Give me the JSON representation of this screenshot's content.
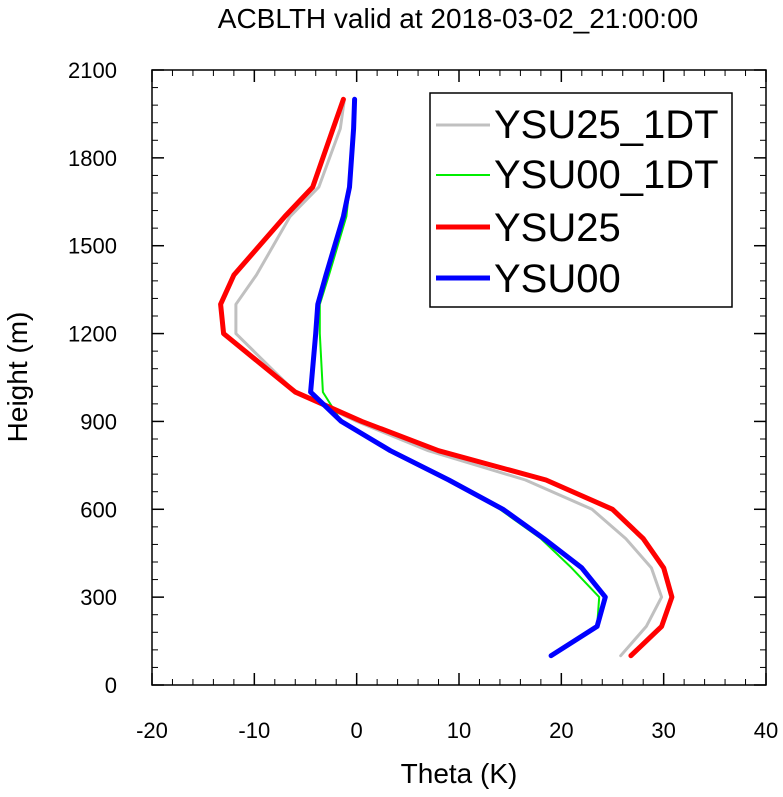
{
  "chart_data": {
    "type": "line",
    "title": "ACBLTH valid at 2018-03-02_21:00:00",
    "xlabel": "Theta (K)",
    "ylabel": "Height (m)",
    "xlim": [
      -20,
      40
    ],
    "ylim": [
      0,
      2100
    ],
    "xticks": [
      -20,
      -10,
      0,
      10,
      20,
      30,
      40
    ],
    "yticks": [
      0,
      300,
      600,
      900,
      1200,
      1500,
      1800,
      2100
    ],
    "grid": false,
    "legend_position": "top-right",
    "series": [
      {
        "name": "YSU25_1DT",
        "color": "#c0c0c0",
        "width": 3,
        "x": [
          25.8,
          28.3,
          29.8,
          28.8,
          26.3,
          23.0,
          16.5,
          7.0,
          0.0,
          -6.0,
          -11.8,
          -11.8,
          -9.8,
          -6.5,
          -3.7,
          -1.6,
          -1.2
        ],
        "y": [
          100,
          200,
          300,
          400,
          500,
          600,
          700,
          800,
          900,
          1000,
          1200,
          1300,
          1400,
          1600,
          1700,
          1900,
          2000
        ]
      },
      {
        "name": "YSU00_1DT",
        "color": "#00ee00",
        "width": 2,
        "x": [
          19.0,
          23.5,
          23.7,
          21.0,
          18.0,
          14.0,
          9.0,
          3.5,
          -1.5,
          -3.3,
          -3.6,
          -3.6,
          -2.7,
          -1.0,
          -0.7,
          -0.3,
          -0.2
        ],
        "y": [
          100,
          200,
          300,
          400,
          500,
          600,
          700,
          800,
          900,
          1000,
          1200,
          1300,
          1400,
          1600,
          1700,
          1900,
          2000
        ]
      },
      {
        "name": "YSU25",
        "color": "#ff0000",
        "width": 5,
        "x": [
          26.8,
          29.8,
          30.8,
          30.0,
          28.0,
          25.0,
          18.5,
          8.0,
          0.5,
          -6.0,
          -13.0,
          -13.3,
          -12.0,
          -7.0,
          -4.3,
          -2.3,
          -1.3
        ],
        "y": [
          100,
          200,
          300,
          400,
          500,
          600,
          700,
          800,
          900,
          1000,
          1200,
          1300,
          1400,
          1600,
          1700,
          1900,
          2000
        ]
      },
      {
        "name": "YSU00",
        "color": "#0000ff",
        "width": 5,
        "x": [
          19.0,
          23.5,
          24.3,
          22.0,
          18.3,
          14.3,
          9.0,
          3.3,
          -1.5,
          -4.5,
          -4.0,
          -3.8,
          -3.0,
          -1.3,
          -0.7,
          -0.3,
          -0.2
        ],
        "y": [
          100,
          200,
          300,
          400,
          500,
          600,
          700,
          800,
          900,
          1000,
          1200,
          1300,
          1400,
          1600,
          1700,
          1900,
          2000
        ]
      }
    ]
  }
}
